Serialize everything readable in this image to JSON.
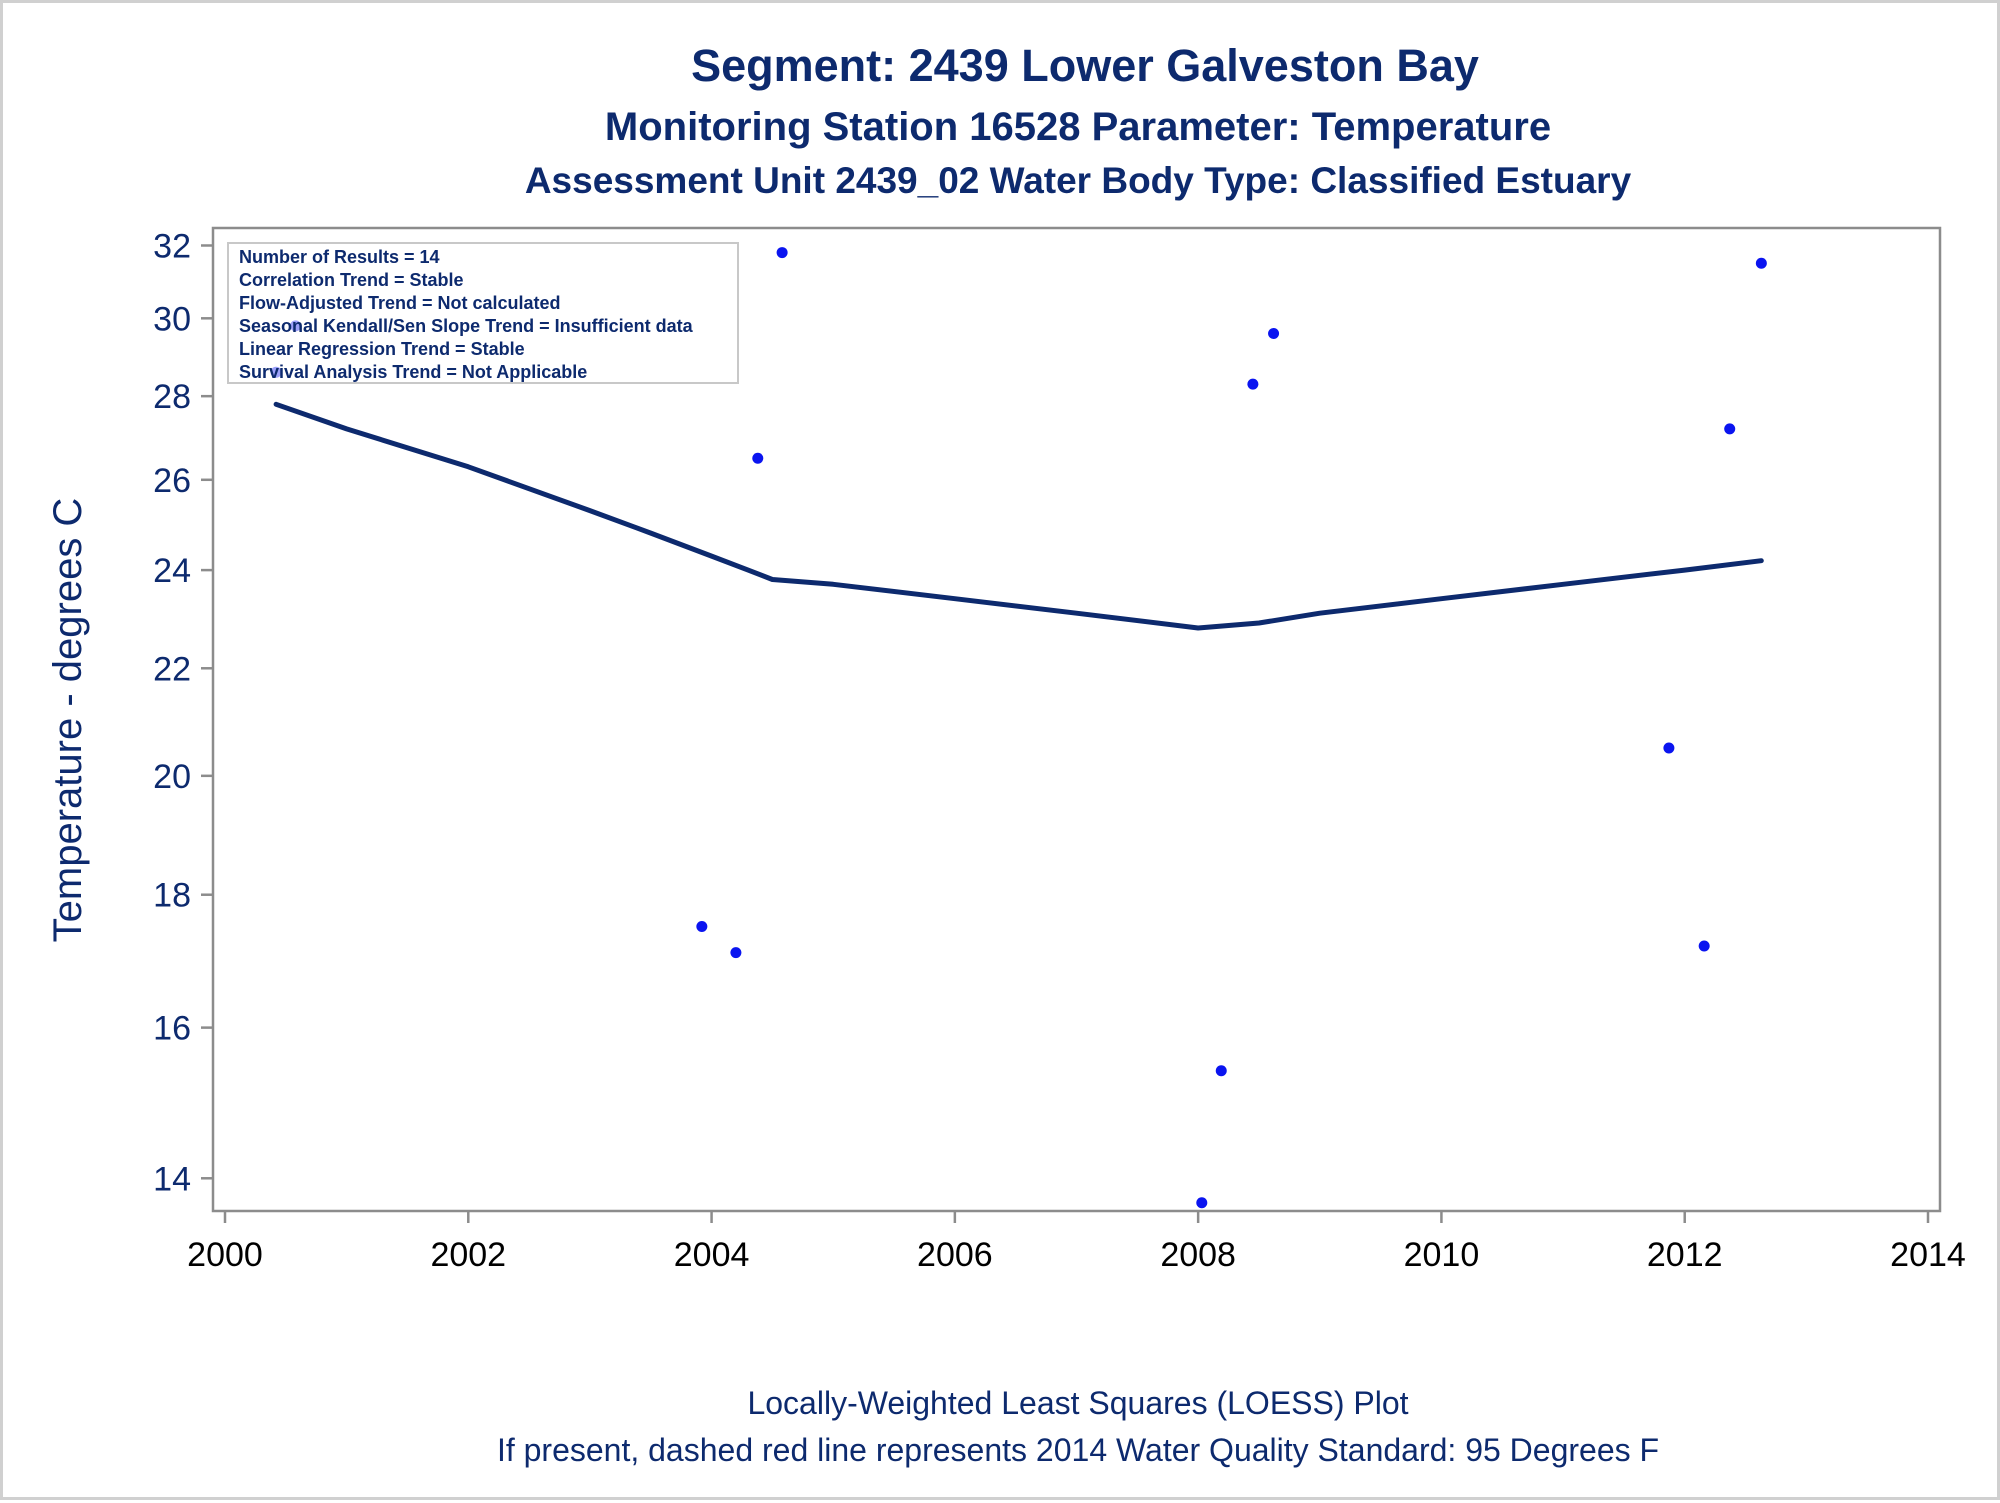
{
  "chart_data": {
    "type": "scatter",
    "title": "Segment: 2439  Lower Galveston Bay",
    "subtitle": "Monitoring Station 16528 Parameter: Temperature",
    "subtitle2": "Assessment Unit 2439_02   Water Body Type: Classified Estuary",
    "xlabel": "",
    "ylabel": "Temperature - degrees C",
    "xlim": [
      2000,
      2014
    ],
    "ylim": [
      13.6,
      32.5
    ],
    "y_scale": "log",
    "x_ticks": [
      2000,
      2002,
      2004,
      2006,
      2008,
      2010,
      2012,
      2014
    ],
    "y_ticks": [
      14,
      16,
      18,
      20,
      22,
      24,
      26,
      28,
      30,
      32
    ],
    "grid": false,
    "footnote": "Locally-Weighted Least Squares (LOESS) Plot",
    "footnote2": "If present, dashed red line represents 2014 Water Quality Standard: 95   Degrees F",
    "stats_box": {
      "position": "top-left",
      "lines": [
        "Number of Results = 14",
        "Correlation Trend = Stable",
        "Flow-Adjusted Trend = Not calculated",
        "Seasonal Kendall/Sen Slope Trend = Insufficient data",
        "Linear Regression Trend = Stable",
        "Survival Analysis Trend = Not Applicable"
      ]
    },
    "points": {
      "color": "#0a14f0",
      "x": [
        2000.42,
        2000.58,
        2003.92,
        2004.2,
        2004.38,
        2004.58,
        2008.03,
        2008.19,
        2008.45,
        2008.62,
        2011.87,
        2012.16,
        2012.37,
        2012.63
      ],
      "y": [
        28.6,
        29.8,
        17.5,
        17.1,
        26.5,
        31.8,
        13.7,
        15.4,
        28.3,
        29.6,
        20.5,
        17.2,
        27.2,
        31.5
      ]
    },
    "loess_line": {
      "color": "#0d2a6e",
      "x": [
        2000.42,
        2001.0,
        2002.0,
        2003.0,
        2003.5,
        2004.0,
        2004.3,
        2004.5,
        2005.0,
        2006.0,
        2007.0,
        2008.0,
        2008.5,
        2009.0,
        2010.0,
        2011.0,
        2012.0,
        2012.63
      ],
      "y": [
        27.8,
        27.2,
        26.3,
        25.3,
        24.8,
        24.3,
        24.0,
        23.8,
        23.7,
        23.4,
        23.1,
        22.8,
        22.9,
        23.1,
        23.4,
        23.7,
        24.0,
        24.2
      ]
    },
    "colors": {
      "title": "#0d2a6e",
      "tick_labels_y": "#0d2a6e",
      "tick_labels_x": "#000000",
      "axis": "#8c8c8c"
    }
  }
}
